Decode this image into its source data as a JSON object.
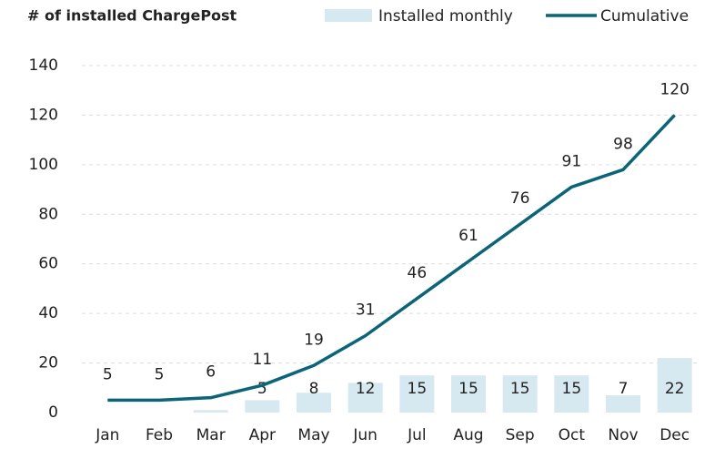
{
  "chart_data": {
    "type": "bar-line",
    "title": "# of installed ChargePost",
    "categories": [
      "Jan",
      "Feb",
      "Mar",
      "Apr",
      "May",
      "Jun",
      "Jul",
      "Aug",
      "Sep",
      "Oct",
      "Nov",
      "Dec"
    ],
    "series": [
      {
        "name": "Installed monthly",
        "type": "bar",
        "color": "#d6e9f1",
        "values": [
          0,
          0,
          1,
          5,
          8,
          12,
          15,
          15,
          15,
          15,
          7,
          22
        ],
        "value_labels": [
          null,
          null,
          null,
          "5",
          "8",
          "12",
          "15",
          "15",
          "15",
          "15",
          "7",
          "22"
        ]
      },
      {
        "name": "Cumulative",
        "type": "line",
        "color": "#0b6477",
        "values": [
          5,
          5,
          6,
          11,
          19,
          31,
          46,
          61,
          76,
          91,
          98,
          120
        ]
      }
    ],
    "ylim": [
      0,
      140
    ],
    "yticks": [
      0,
      20,
      40,
      60,
      80,
      100,
      120,
      140
    ],
    "grid": true
  }
}
